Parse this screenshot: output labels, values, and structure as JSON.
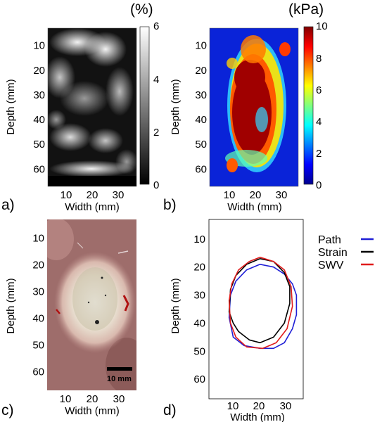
{
  "panels": {
    "a": {
      "label": "a)",
      "unit": "(%)",
      "xlabel": "Width (mm)",
      "ylabel": "Depth (mm)",
      "xticks": [
        "10",
        "20",
        "30"
      ],
      "yticks": [
        "10",
        "20",
        "30",
        "40",
        "50",
        "60"
      ],
      "colorbar_ticks": [
        "0",
        "2",
        "4",
        "6"
      ],
      "colormap": "gray"
    },
    "b": {
      "label": "b)",
      "unit": "(kPa)",
      "xlabel": "Width (mm)",
      "ylabel": "Depth (mm)",
      "xticks": [
        "10",
        "20",
        "30"
      ],
      "yticks": [
        "10",
        "20",
        "30",
        "40",
        "50",
        "60"
      ],
      "colorbar_ticks": [
        "0",
        "2",
        "4",
        "6",
        "8",
        "10"
      ],
      "colormap": "jet"
    },
    "c": {
      "label": "c)",
      "xlabel": "Width (mm)",
      "ylabel": "Depth (mm)",
      "xticks": [
        "10",
        "20",
        "30"
      ],
      "yticks": [
        "10",
        "20",
        "30",
        "40",
        "50",
        "60"
      ],
      "scalebar_label": "10 mm"
    },
    "d": {
      "label": "d)",
      "xlabel": "Width (mm)",
      "ylabel": "Depth (mm)",
      "xticks": [
        "10",
        "20",
        "30"
      ],
      "yticks": [
        "10",
        "20",
        "30",
        "40",
        "50",
        "60"
      ]
    }
  },
  "chart_data": {
    "type": "line",
    "xlabel": "Width (mm)",
    "ylabel": "Depth (mm)",
    "xlim": [
      2,
      37
    ],
    "ylim": [
      67,
      3
    ],
    "series": [
      {
        "name": "Path",
        "color": "#1f1fd6",
        "x": [
          21,
          26,
          30,
          33,
          34.5,
          34.5,
          33,
          30,
          26,
          21,
          15,
          11,
          9.5,
          10,
          12,
          16,
          21
        ],
        "y": [
          19,
          20,
          22.5,
          26,
          30,
          37,
          42,
          47,
          49,
          49,
          48,
          45,
          38,
          30,
          25,
          21,
          19
        ]
      },
      {
        "name": "Strain",
        "color": "#000000",
        "x": [
          21,
          26,
          30,
          32,
          32,
          30,
          26,
          21,
          17,
          13,
          11,
          9.5,
          10,
          12,
          16,
          21
        ],
        "y": [
          17,
          18,
          22,
          27,
          33,
          40,
          45,
          47,
          46,
          43,
          40,
          36,
          28,
          23,
          19,
          17
        ]
      },
      {
        "name": "SWV",
        "color": "#e01b1b",
        "x": [
          21,
          26,
          30,
          32.5,
          33,
          31,
          27,
          22,
          16,
          12,
          10,
          9.5,
          10.5,
          13,
          17,
          21
        ],
        "y": [
          16.5,
          18,
          21,
          27,
          34,
          42,
          47,
          49,
          48.5,
          45,
          40,
          32,
          26,
          21,
          18,
          16.5
        ]
      }
    ]
  }
}
